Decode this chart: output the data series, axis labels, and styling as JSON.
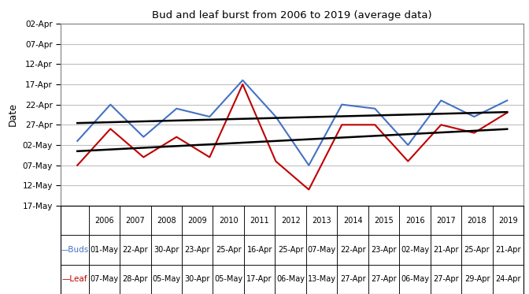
{
  "title": "Bud and leaf burst from 2006 to 2019 (average data)",
  "years": [
    2006,
    2007,
    2008,
    2009,
    2010,
    2011,
    2012,
    2013,
    2014,
    2015,
    2016,
    2017,
    2018,
    2019
  ],
  "buds_dates": [
    "01-May",
    "22-Apr",
    "30-Apr",
    "23-Apr",
    "25-Apr",
    "16-Apr",
    "25-Apr",
    "07-May",
    "22-Apr",
    "23-Apr",
    "02-May",
    "21-Apr",
    "25-Apr",
    "21-Apr"
  ],
  "leaf_dates": [
    "07-May",
    "28-Apr",
    "05-May",
    "30-Apr",
    "05-May",
    "17-Apr",
    "06-May",
    "13-May",
    "27-Apr",
    "27-Apr",
    "06-May",
    "27-Apr",
    "29-Apr",
    "24-Apr"
  ],
  "bud_color": "#4472C4",
  "leaf_color": "#C00000",
  "trend_color": "#000000",
  "ylabel": "Date",
  "background_color": "#FFFFFF",
  "grid_color": "#BFBFBF",
  "ytick_labels": [
    "02-Apr",
    "07-Apr",
    "12-Apr",
    "17-Apr",
    "22-Apr",
    "27-Apr",
    "02-May",
    "07-May",
    "12-May",
    "17-May"
  ],
  "border_color": "#7F7F7F"
}
